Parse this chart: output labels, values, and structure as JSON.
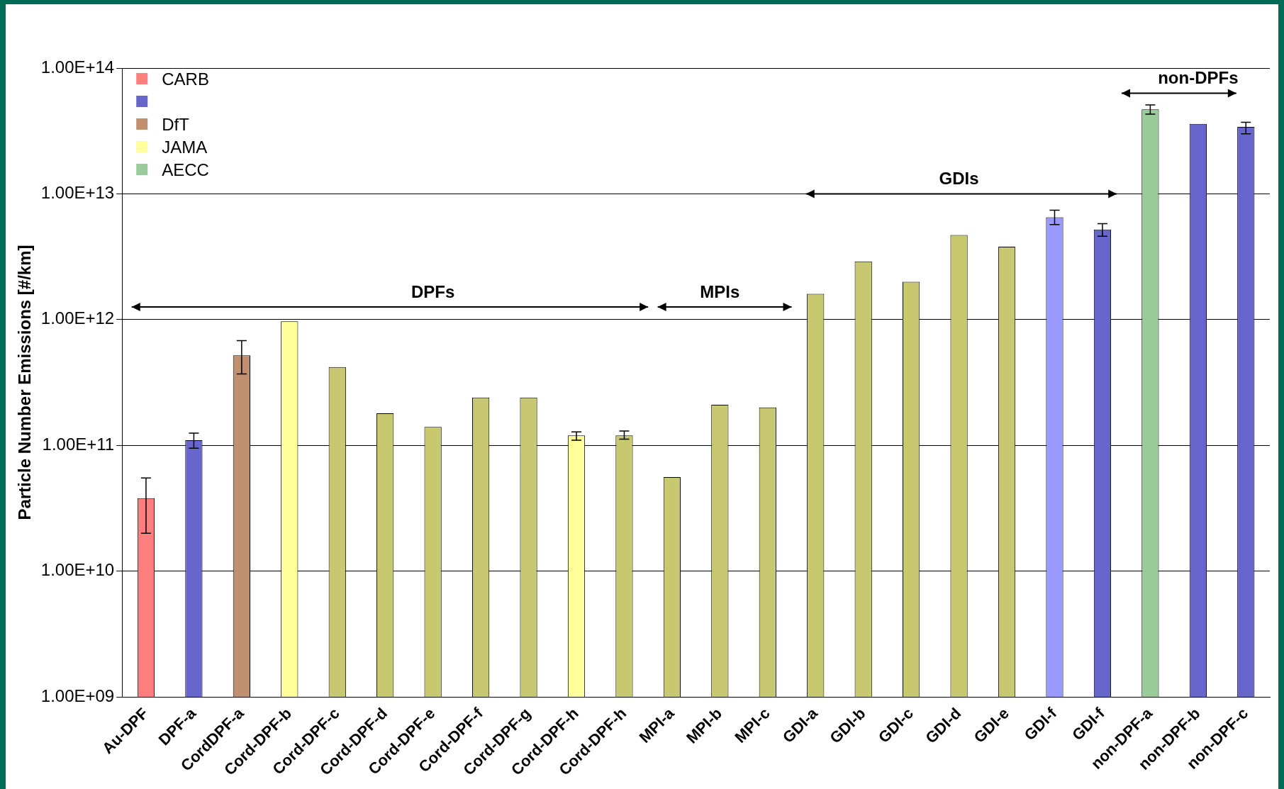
{
  "chart_data": {
    "type": "bar",
    "ylabel": "Particle Number Emissions [#/km]",
    "categories": [
      "Au-DPF",
      "DPF-a",
      "CordDPF-a",
      "Cord-DPF-b",
      "Cord-DPF-c",
      "Cord-DPF-d",
      "Cord-DPF-e",
      "Cord-DPF-f",
      "Cord-DPF-g",
      "Cord-DPF-h",
      "Cord-DPF-h",
      "MPI-a",
      "MPI-b",
      "MPI-c",
      "GDI-a",
      "GDI-b",
      "GDI-c",
      "GDI-d",
      "GDI-e",
      "GDI-f",
      "GDI-f",
      "non-DPF-a",
      "non-DPF-b",
      "non-DPF-c"
    ],
    "series": [
      {
        "name": "CARB",
        "color": "#ff7f7f",
        "values": [
          38000000000.0,
          null,
          null,
          null,
          null,
          null,
          null,
          null,
          null,
          null,
          null,
          null,
          null,
          null,
          null,
          null,
          null,
          null,
          null,
          null,
          null,
          null,
          null,
          null
        ],
        "errors": [
          [
            20000000000.0,
            55000000000.0
          ],
          null,
          null,
          null,
          null,
          null,
          null,
          null,
          null,
          null,
          null,
          null,
          null,
          null,
          null,
          null,
          null,
          null,
          null,
          null,
          null,
          null,
          null,
          null
        ]
      },
      {
        "color": "#6666cc",
        "values": [
          null,
          110000000000.0,
          null,
          null,
          null,
          null,
          null,
          null,
          null,
          null,
          null,
          null,
          null,
          null,
          null,
          null,
          null,
          null,
          null,
          6500000000000.0,
          5200000000000.0,
          null,
          36000000000000.0,
          34000000000000.0
        ],
        "colors": [
          null,
          "#6666cc",
          null,
          null,
          null,
          null,
          null,
          null,
          null,
          null,
          null,
          null,
          null,
          null,
          null,
          null,
          null,
          null,
          null,
          "#9999ff",
          "#6666cc",
          null,
          "#6666cc",
          "#6666cc"
        ],
        "errors": [
          null,
          [
            95000000000.0,
            125000000000.0
          ],
          null,
          null,
          null,
          null,
          null,
          null,
          null,
          null,
          null,
          null,
          null,
          null,
          null,
          null,
          null,
          null,
          null,
          [
            5700000000000.0,
            7400000000000.0
          ],
          [
            4600000000000.0,
            5800000000000.0
          ],
          null,
          null,
          [
            30000000000000.0,
            37000000000000.0
          ]
        ]
      },
      {
        "name": "DfT",
        "color": "#c09070",
        "values": [
          null,
          null,
          520000000000.0,
          null,
          null,
          null,
          null,
          null,
          null,
          null,
          null,
          null,
          null,
          null,
          null,
          null,
          null,
          null,
          null,
          null,
          null,
          null,
          null,
          null
        ],
        "errors": [
          null,
          null,
          [
            370000000000.0,
            680000000000.0
          ],
          null,
          null,
          null,
          null,
          null,
          null,
          null,
          null,
          null,
          null,
          null,
          null,
          null,
          null,
          null,
          null,
          null,
          null,
          null,
          null,
          null
        ]
      },
      {
        "name": "JAMA",
        "color": "#ffff99",
        "values": [
          null,
          null,
          null,
          970000000000.0,
          420000000000.0,
          180000000000.0,
          140000000000.0,
          240000000000.0,
          240000000000.0,
          120000000000.0,
          120000000000.0,
          56000000000.0,
          210000000000.0,
          200000000000.0,
          1600000000000.0,
          2900000000000.0,
          2000000000000.0,
          4700000000000.0,
          3800000000000.0,
          null,
          null,
          null,
          null,
          null
        ],
        "colors": [
          null,
          null,
          null,
          "#ffff99",
          "#c8c870",
          "#c8c870",
          "#c8c870",
          "#c8c870",
          "#c8c870",
          "#ffff99",
          "#c8c870",
          "#c8c870",
          "#c8c870",
          "#c8c870",
          "#c8c870",
          "#c8c870",
          "#c8c870",
          "#c8c870",
          "#c8c870",
          null,
          null,
          null,
          null,
          null
        ],
        "errors": [
          null,
          null,
          null,
          null,
          null,
          null,
          null,
          null,
          null,
          [
            110000000000.0,
            128000000000.0
          ],
          [
            112000000000.0,
            130000000000.0
          ],
          null,
          null,
          null,
          null,
          null,
          null,
          null,
          null,
          null,
          null,
          null,
          null,
          null
        ]
      },
      {
        "name": "AECC",
        "color": "#99cc99",
        "values": [
          null,
          null,
          null,
          null,
          null,
          null,
          null,
          null,
          null,
          null,
          null,
          null,
          null,
          null,
          null,
          null,
          null,
          null,
          null,
          null,
          null,
          47000000000000.0,
          null,
          null
        ],
        "errors": [
          null,
          null,
          null,
          null,
          null,
          null,
          null,
          null,
          null,
          null,
          null,
          null,
          null,
          null,
          null,
          null,
          null,
          null,
          null,
          null,
          null,
          [
            43000000000000.0,
            51000000000000.0
          ],
          null,
          null
        ]
      }
    ],
    "log": true,
    "ylim": [
      1000000000.0,
      100000000000000.0
    ],
    "yticks": [
      {
        "value": 1000000000.0,
        "label": "1.00E+09"
      },
      {
        "value": 10000000000.0,
        "label": "1.00E+10"
      },
      {
        "value": 100000000000.0,
        "label": "1.00E+11"
      },
      {
        "value": 1000000000000.0,
        "label": "1.00E+12"
      },
      {
        "value": 10000000000000.0,
        "label": "1.00E+13"
      },
      {
        "value": 100000000000000.0,
        "label": "1.00E+14"
      }
    ],
    "grid": "y",
    "legend": "top left",
    "annotations": [
      "DPFs",
      "MPIs",
      "GDIs",
      "non-DPFs"
    ]
  }
}
